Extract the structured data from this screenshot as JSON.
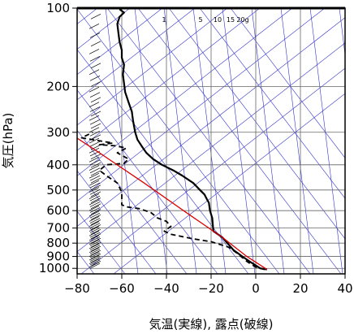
{
  "chart_data": {
    "type": "line",
    "subtype": "emagram (skew-T log-P sounding)",
    "title": "",
    "xlabel": "気温(実線), 露点(破線)",
    "ylabel": "気圧(hPa)",
    "xlim": [
      -80,
      40
    ],
    "ylim": [
      1050,
      100
    ],
    "y_scale": "log",
    "x_ticks": [
      -80,
      -60,
      -40,
      -20,
      0,
      20,
      40
    ],
    "x_tick_labels": [
      "−80",
      "−60",
      "−40",
      "−20",
      "0",
      "20",
      "40"
    ],
    "y_ticks": [
      100,
      200,
      300,
      400,
      500,
      600,
      700,
      800,
      900,
      1000
    ],
    "mixing_ratio_labels": [
      "1",
      "5",
      "10",
      "15",
      "20g"
    ],
    "grid": true,
    "colors": {
      "temperature": "#000000",
      "dewpoint": "#000000",
      "parcel_curve": "#dd0000",
      "reference_lines": "#3333cc",
      "grid": "#666666",
      "wind_barbs": "#000000"
    },
    "series": [
      {
        "style": "solid",
        "points": [
          {
            "t": 5,
            "p": 1010
          },
          {
            "t": 2,
            "p": 1000
          },
          {
            "t": -2,
            "p": 950
          },
          {
            "t": -6,
            "p": 900
          },
          {
            "t": -10,
            "p": 850
          },
          {
            "t": -15,
            "p": 760
          },
          {
            "t": -19,
            "p": 720
          },
          {
            "t": -19.5,
            "p": 640
          },
          {
            "t": -20.5,
            "p": 600
          },
          {
            "t": -21,
            "p": 560
          },
          {
            "t": -22,
            "p": 540
          },
          {
            "t": -23,
            "p": 520
          },
          {
            "t": -25,
            "p": 500
          },
          {
            "t": -28,
            "p": 470
          },
          {
            "t": -33,
            "p": 440
          },
          {
            "t": -37,
            "p": 420
          },
          {
            "t": -42,
            "p": 400
          },
          {
            "t": -46,
            "p": 380
          },
          {
            "t": -49,
            "p": 360
          },
          {
            "t": -51,
            "p": 340
          },
          {
            "t": -53,
            "p": 320
          },
          {
            "t": -54,
            "p": 300
          },
          {
            "t": -55,
            "p": 270
          },
          {
            "t": -55.5,
            "p": 250
          },
          {
            "t": -57,
            "p": 230
          },
          {
            "t": -58.5,
            "p": 210
          },
          {
            "t": -59,
            "p": 195
          },
          {
            "t": -59.5,
            "p": 180
          },
          {
            "t": -59,
            "p": 165
          },
          {
            "t": -60,
            "p": 155
          },
          {
            "t": -60,
            "p": 145
          },
          {
            "t": -61,
            "p": 135
          },
          {
            "t": -61.5,
            "p": 125
          },
          {
            "t": -62,
            "p": 115
          },
          {
            "t": -61,
            "p": 108
          },
          {
            "t": -59,
            "p": 104
          },
          {
            "t": -61,
            "p": 101
          }
        ]
      },
      {
        "style": "dashed",
        "points": [
          {
            "t": 4,
            "p": 1010
          },
          {
            "t": 0,
            "p": 990
          },
          {
            "t": -4,
            "p": 940
          },
          {
            "t": -8,
            "p": 880
          },
          {
            "t": -12,
            "p": 830
          },
          {
            "t": -20,
            "p": 790
          },
          {
            "t": -28,
            "p": 770
          },
          {
            "t": -38,
            "p": 740
          },
          {
            "t": -41,
            "p": 720
          },
          {
            "t": -38,
            "p": 690
          },
          {
            "t": -40,
            "p": 660
          },
          {
            "t": -44,
            "p": 640
          },
          {
            "t": -47,
            "p": 610
          },
          {
            "t": -52,
            "p": 590
          },
          {
            "t": -58,
            "p": 580
          },
          {
            "t": -60,
            "p": 570
          },
          {
            "t": -60,
            "p": 510
          },
          {
            "t": -62,
            "p": 470
          },
          {
            "t": -67,
            "p": 440
          },
          {
            "t": -70,
            "p": 420
          },
          {
            "t": -67,
            "p": 400
          },
          {
            "t": -59,
            "p": 395
          },
          {
            "t": -57,
            "p": 380
          },
          {
            "t": -62,
            "p": 360
          },
          {
            "t": -58,
            "p": 345
          },
          {
            "t": -63,
            "p": 338
          },
          {
            "t": -70,
            "p": 335
          },
          {
            "t": -64,
            "p": 330
          },
          {
            "t": -78,
            "p": 315
          },
          {
            "t": -73,
            "p": 300
          }
        ]
      },
      {
        "style": "solid-red",
        "points": [
          {
            "t": 5,
            "p": 1010
          },
          {
            "t": -4,
            "p": 900
          },
          {
            "t": -15,
            "p": 760
          },
          {
            "t": -30,
            "p": 620
          },
          {
            "t": -50,
            "p": 470
          },
          {
            "t": -70,
            "p": 360
          },
          {
            "t": -84,
            "p": 300
          }
        ]
      }
    ]
  }
}
